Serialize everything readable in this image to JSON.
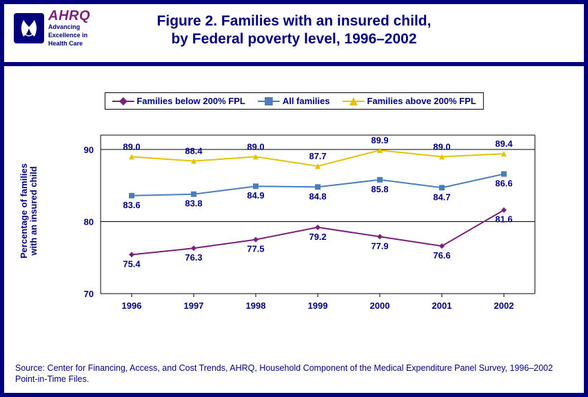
{
  "logo": {
    "brand": "AHRQ",
    "tagline_l1": "Advancing",
    "tagline_l2": "Excellence in",
    "tagline_l3": "Health Care"
  },
  "title_l1": "Figure 2. Families with an insured child,",
  "title_l2": "by Federal poverty level, 1996–2002",
  "y_axis_label_l1": "Percentage of families",
  "y_axis_label_l2": "with an insured child",
  "source": "Source: Center for Financing, Access, and Cost Trends, AHRQ, Household Component of the Medical Expenditure Panel Survey, 1996–2002 Point-in-Time Files.",
  "chart": {
    "type": "line",
    "categories": [
      "1996",
      "1997",
      "1998",
      "1999",
      "2000",
      "2001",
      "2002"
    ],
    "ylim": [
      70,
      92
    ],
    "yticks": [
      70,
      80,
      90
    ],
    "grid_color": "#000000",
    "background_color": "#ffffff",
    "axis_font_size": 13,
    "axis_font_weight": "bold",
    "axis_font_color": "#000080",
    "line_width": 2,
    "marker_size": 8,
    "series": [
      {
        "name": "Families below 200% FPL",
        "color": "#7b1f7b",
        "marker": "diamond",
        "values": [
          75.4,
          76.3,
          77.5,
          79.2,
          77.9,
          76.6,
          81.6
        ],
        "label_position": "below"
      },
      {
        "name": "All families",
        "color": "#4a7ebb",
        "marker": "square",
        "values": [
          83.6,
          83.8,
          84.9,
          84.8,
          85.8,
          84.7,
          86.6
        ],
        "label_position": "below"
      },
      {
        "name": "Families above 200% FPL",
        "color": "#e6c200",
        "marker": "triangle",
        "values": [
          89.0,
          88.4,
          89.0,
          87.7,
          89.9,
          89.0,
          89.4
        ],
        "label_position": "above"
      }
    ]
  }
}
